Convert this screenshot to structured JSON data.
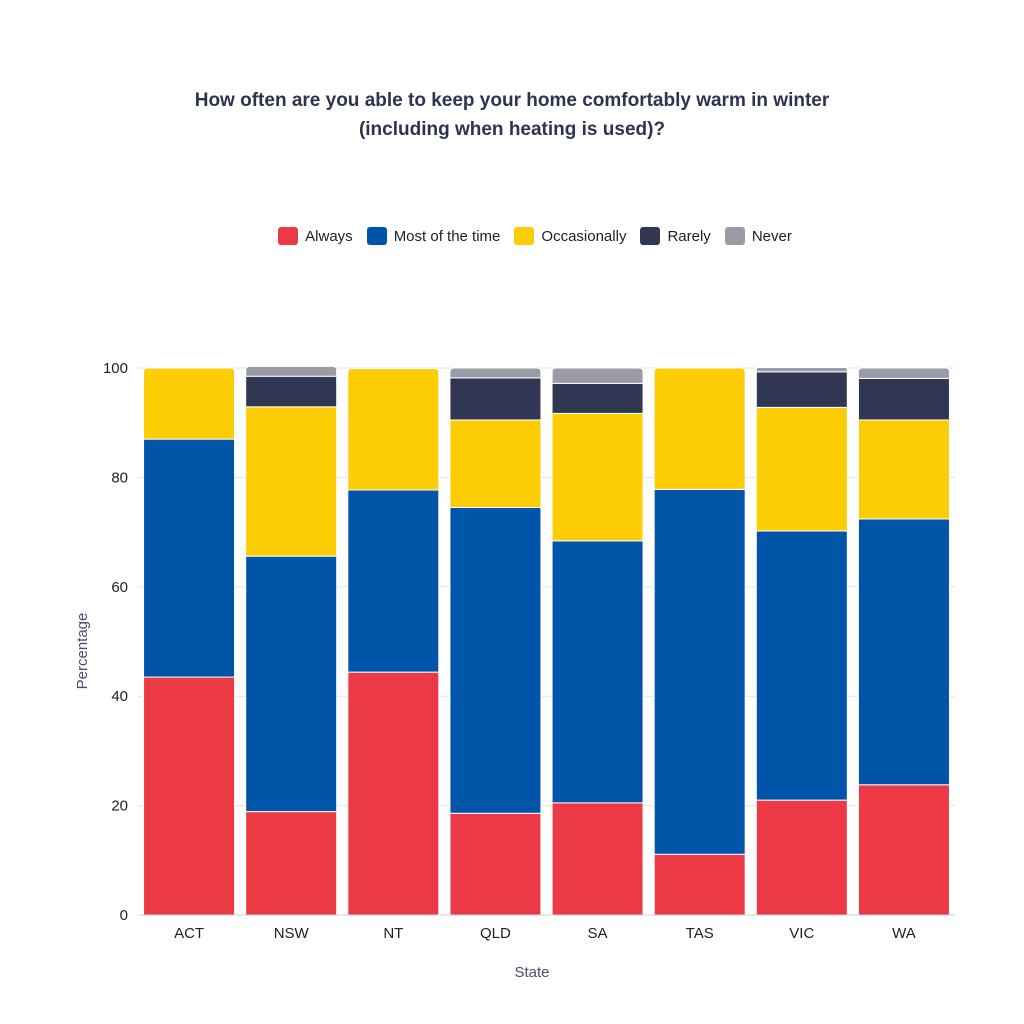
{
  "chart_data": {
    "type": "bar",
    "stacked": true,
    "title_lines": [
      "How often are you able to keep your home comfortably warm in winter",
      "(including when heating is used)?"
    ],
    "xlabel": "State",
    "ylabel": "Percentage",
    "ylim": [
      0,
      100
    ],
    "yticks": [
      0,
      20,
      40,
      60,
      80,
      100
    ],
    "grid": true,
    "legend_position": "top-center",
    "categories": [
      "ACT",
      "NSW",
      "NT",
      "QLD",
      "SA",
      "TAS",
      "VIC",
      "WA"
    ],
    "series": [
      {
        "name": "Always",
        "color": "#ec3946",
        "values": [
          43.5,
          18.9,
          44.4,
          18.6,
          20.5,
          11.1,
          21.0,
          23.8
        ]
      },
      {
        "name": "Most of the time",
        "color": "#0055a8",
        "values": [
          43.5,
          46.7,
          33.3,
          55.9,
          47.9,
          66.7,
          49.2,
          48.6
        ]
      },
      {
        "name": "Occasionally",
        "color": "#fccc05",
        "values": [
          13.0,
          27.3,
          22.2,
          16.0,
          23.3,
          22.2,
          22.6,
          18.1
        ]
      },
      {
        "name": "Rarely",
        "color": "#313653",
        "values": [
          0.0,
          5.6,
          0.0,
          7.7,
          5.5,
          0.0,
          6.5,
          7.6
        ]
      },
      {
        "name": "Never",
        "color": "#9b9ba5",
        "values": [
          0.0,
          1.8,
          0.0,
          1.8,
          2.8,
          0.0,
          0.8,
          1.9
        ]
      }
    ]
  }
}
